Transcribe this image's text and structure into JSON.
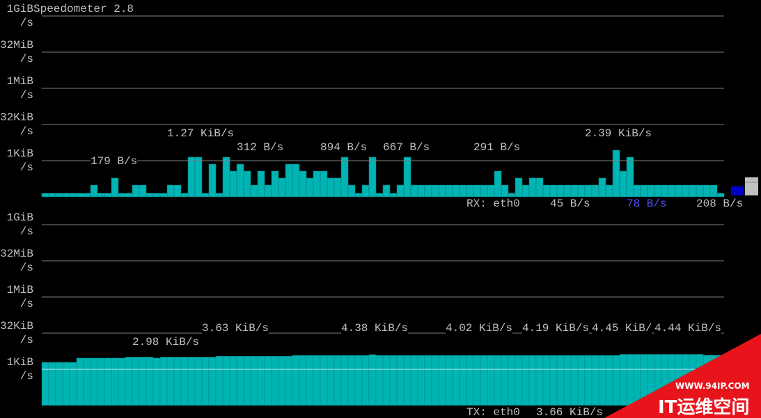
{
  "chart_data": [
    {
      "type": "bar",
      "title": "Speedometer 2.8",
      "log_scale": true,
      "grid": true,
      "color": "#00b4b4",
      "ylim": [
        32,
        1073741824
      ],
      "yticks": [
        {
          "value": 1024,
          "label": "1KiB\n/s"
        },
        {
          "value": 32768,
          "label": "32KiB\n/s"
        },
        {
          "value": 1048576,
          "label": "1MiB\n/s"
        },
        {
          "value": 33554432,
          "label": "32MiB\n/s"
        },
        {
          "value": 1073741824,
          "label": "1GiB\n/s"
        }
      ],
      "values": [
        45,
        45,
        45,
        45,
        45,
        45,
        45,
        99,
        45,
        45,
        194,
        45,
        45,
        99,
        99,
        45,
        45,
        45,
        99,
        99,
        45,
        1434,
        1434,
        45,
        734,
        45,
        1434,
        377,
        734,
        377,
        99,
        377,
        99,
        377,
        194,
        734,
        734,
        377,
        194,
        377,
        377,
        194,
        194,
        1434,
        99,
        45,
        99,
        1434,
        45,
        99,
        45,
        99,
        1434,
        99,
        99,
        99,
        99,
        99,
        99,
        99,
        99,
        99,
        99,
        99,
        99,
        377,
        99,
        45,
        194,
        99,
        194,
        194,
        99,
        99,
        99,
        99,
        99,
        99,
        99,
        99,
        194,
        99,
        2790,
        377,
        1434,
        99,
        99,
        99,
        99,
        99,
        99,
        99,
        99,
        99,
        99,
        99,
        99,
        45
      ],
      "annotations": [
        "179 B/s",
        "1.27 KiB/s",
        "312 B/s",
        "894 B/s",
        "667 B/s",
        "291 B/s",
        "2.39 KiB/s"
      ],
      "status": {
        "interface": "RX: eth0",
        "current": "45 B/s",
        "average": "78 B/s",
        "peak": "208 B/s"
      }
    },
    {
      "type": "area",
      "log_scale": true,
      "grid": true,
      "color": "#00b4b4",
      "ylim": [
        32,
        1073741824
      ],
      "yticks": [
        {
          "value": 1024,
          "label": "1KiB\n/s"
        },
        {
          "value": 32768,
          "label": "32KiB\n/s"
        },
        {
          "value": 1048576,
          "label": "1MiB\n/s"
        },
        {
          "value": 33554432,
          "label": "32MiB\n/s"
        },
        {
          "value": 1073741824,
          "label": "1GiB\n/s"
        }
      ],
      "values": [
        2000,
        2000,
        2000,
        2000,
        2000,
        3000,
        3000,
        3000,
        3000,
        3000,
        3000,
        3000,
        3300,
        3300,
        3300,
        3300,
        3000,
        3300,
        3300,
        3300,
        3300,
        3300,
        3300,
        3300,
        3300,
        3600,
        3600,
        3600,
        3600,
        3600,
        3600,
        3600,
        3600,
        3600,
        3600,
        3600,
        3900,
        3900,
        3900,
        3900,
        3900,
        3900,
        3900,
        3900,
        3900,
        3900,
        3900,
        4200,
        3900,
        3900,
        3900,
        3900,
        3900,
        3900,
        3900,
        3900,
        3900,
        3900,
        3900,
        3900,
        3900,
        3900,
        3900,
        3900,
        3900,
        3900,
        3900,
        3900,
        3900,
        3900,
        3900,
        3900,
        3900,
        3900,
        3900,
        3900,
        3900,
        3900,
        3900,
        3900,
        3900,
        3900,
        3900,
        4300,
        4300,
        4300,
        4300,
        4300,
        4300,
        4300,
        4300,
        4300,
        4300,
        4300,
        4300,
        4000,
        4000,
        4000
      ],
      "annotations": [
        "2.98 KiB/s",
        "3.63 KiB/s",
        "4.38 KiB/s",
        "4.02 KiB/s",
        "4.19 KiB/s",
        "4.45 KiB/",
        "4.44 KiB/s"
      ],
      "status": {
        "interface": "TX: eth0",
        "current": "3.66 KiB/s"
      }
    }
  ],
  "watermark": {
    "url": "WWW.94IP.COM",
    "name": "IT运维空间"
  }
}
